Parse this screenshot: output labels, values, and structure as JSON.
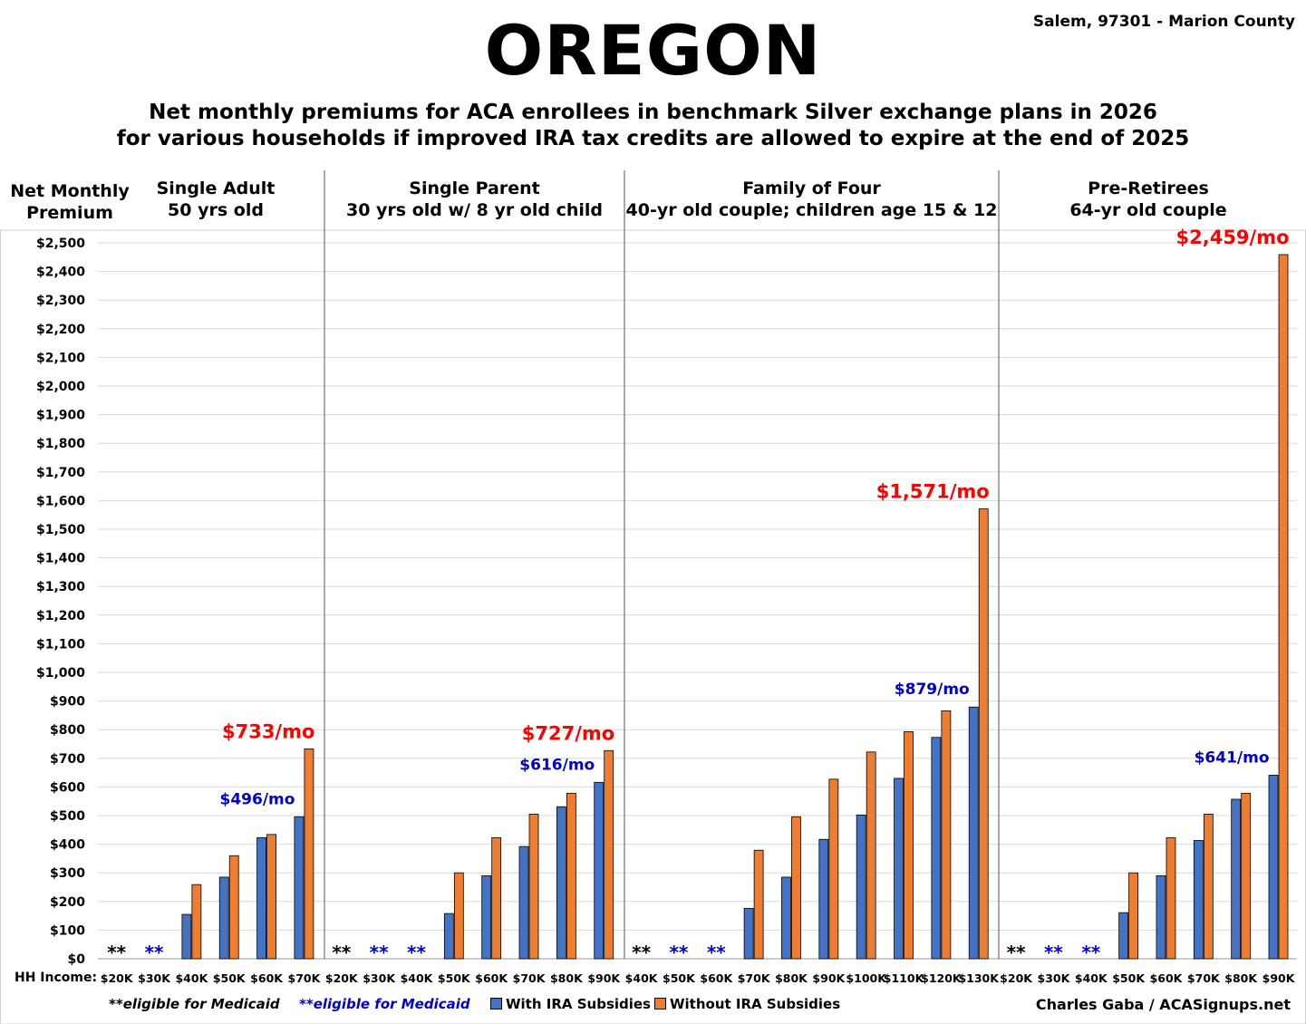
{
  "header": {
    "title": "OREGON",
    "location": "Salem, 97301 - Marion County",
    "subtitle_line1": "Net monthly premiums for ACA enrollees in benchmark Silver exchange plans in 2026",
    "subtitle_line2": "for various households if improved IRA tax credits are allowed to expire at the end of 2025"
  },
  "footer": {
    "medicaid_black": "**eligible for Medicaid",
    "medicaid_blue": "**eligible for Medicaid",
    "credit": "Charles Gaba / ACASignups.net",
    "x_axis_prefix": "HH Income:"
  },
  "colors": {
    "with": "#4472C4",
    "without": "#ED7D31",
    "annot_red": "#FF0000",
    "annot_blue": "#0000CC",
    "medicaid_black": "#000000",
    "medicaid_blue": "#0000CC"
  },
  "chart_data": {
    "type": "bar",
    "ylabel_line1": "Net Monthly",
    "ylabel_line2": "Premium",
    "ylim": [
      0,
      2500
    ],
    "y_tick_step": 100,
    "grid": true,
    "legend_position": "bottom",
    "series": [
      {
        "name": "With IRA Subsidies",
        "color": "#4472C4"
      },
      {
        "name": "Without IRA Subsidies",
        "color": "#ED7D31"
      }
    ],
    "panels": [
      {
        "title_line1": "Single Adult",
        "title_line2": "50 yrs old",
        "categories": [
          "$20K",
          "$30K",
          "$40K",
          "$50K",
          "$60K",
          "$70K"
        ],
        "with": [
          null,
          null,
          155,
          285,
          423,
          496
        ],
        "without": [
          null,
          null,
          259,
          360,
          434,
          733
        ],
        "medicaid": [
          "black",
          "blue",
          null,
          null,
          null,
          null
        ],
        "annot_red": "$733/mo",
        "annot_blue": "$496/mo"
      },
      {
        "title_line1": "Single Parent",
        "title_line2": "30 yrs old w/ 8 yr old child",
        "categories": [
          "$20K",
          "$30K",
          "$40K",
          "$50K",
          "$60K",
          "$70K",
          "$80K",
          "$90K"
        ],
        "with": [
          null,
          null,
          null,
          158,
          290,
          392,
          531,
          616
        ],
        "without": [
          null,
          null,
          null,
          300,
          423,
          505,
          578,
          727
        ],
        "medicaid": [
          "black",
          "blue",
          "blue",
          null,
          null,
          null,
          null,
          null
        ],
        "annot_red": "$727/mo",
        "annot_blue": "$616/mo"
      },
      {
        "title_line1": "Family of Four",
        "title_line2": "40-yr old couple; children age 15 & 12",
        "categories": [
          "$40K",
          "$50K",
          "$60K",
          "$70K",
          "$80K",
          "$90K",
          "$100K",
          "$110K",
          "$120K",
          "$130K"
        ],
        "with": [
          null,
          null,
          null,
          176,
          285,
          417,
          502,
          630,
          773,
          879
        ],
        "without": [
          null,
          null,
          null,
          379,
          496,
          627,
          722,
          793,
          866,
          1571
        ],
        "medicaid": [
          "black",
          "blue",
          "blue",
          null,
          null,
          null,
          null,
          null,
          null,
          null
        ],
        "annot_red": "$1,571/mo",
        "annot_blue": "$879/mo"
      },
      {
        "title_line1": "Pre-Retirees",
        "title_line2": "64-yr old couple",
        "categories": [
          "$20K",
          "$30K",
          "$40K",
          "$50K",
          "$60K",
          "$70K",
          "$80K",
          "$90K"
        ],
        "with": [
          null,
          null,
          null,
          161,
          290,
          413,
          557,
          641
        ],
        "without": [
          null,
          null,
          null,
          300,
          423,
          505,
          578,
          2459
        ],
        "medicaid": [
          "black",
          "blue",
          "blue",
          null,
          null,
          null,
          null,
          null
        ],
        "annot_red": "$2,459/mo",
        "annot_blue": "$641/mo"
      }
    ]
  }
}
